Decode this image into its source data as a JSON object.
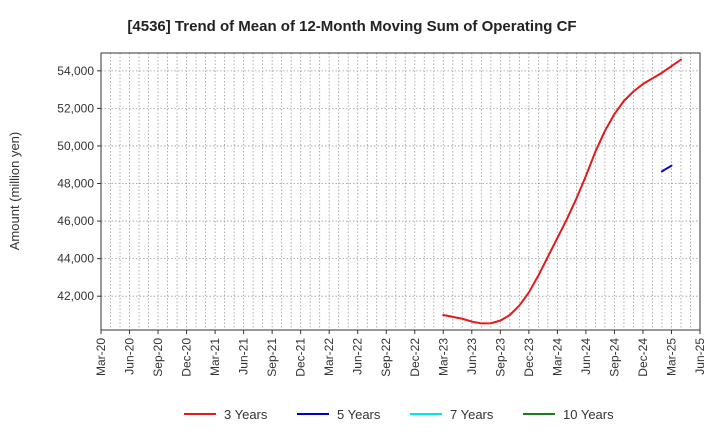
{
  "chart_data": {
    "type": "line",
    "title": "[4536]  Trend of Mean of 12-Month Moving Sum of Operating CF",
    "xlabel": "",
    "ylabel": "Amount (million yen)",
    "ylim": [
      40200,
      54950
    ],
    "yticks": [
      42000,
      44000,
      46000,
      48000,
      50000,
      52000,
      54000
    ],
    "ytick_labels": [
      "42,000",
      "44,000",
      "46,000",
      "48,000",
      "50,000",
      "52,000",
      "54,000"
    ],
    "x_range_months": [
      0,
      63
    ],
    "xtick_labels": [
      "Mar-20",
      "Jun-20",
      "Sep-20",
      "Dec-20",
      "Mar-21",
      "Jun-21",
      "Sep-21",
      "Dec-21",
      "Mar-22",
      "Jun-22",
      "Sep-22",
      "Dec-22",
      "Mar-23",
      "Jun-23",
      "Sep-23",
      "Dec-23",
      "Mar-24",
      "Jun-24",
      "Sep-24",
      "Dec-24",
      "Mar-25",
      "Jun-25"
    ],
    "grid": true,
    "legend_position": "bottom",
    "series": [
      {
        "name": "3 Years",
        "color": "#e31a1c",
        "start_label": "Mar-23",
        "values": [
          41000,
          40900,
          40800,
          40650,
          40550,
          40560,
          40700,
          41000,
          41500,
          42200,
          43100,
          44100,
          45100,
          46100,
          47200,
          48400,
          49700,
          50800,
          51700,
          52400,
          52900,
          53300,
          53600,
          53900,
          54250,
          54600
        ]
      },
      {
        "name": "5 Years",
        "color": "#0000cc",
        "start_label": "Feb-25",
        "values": [
          48650,
          48950
        ]
      },
      {
        "name": "7 Years",
        "color": "#00e5ee",
        "start_label": "",
        "values": []
      },
      {
        "name": "10 Years",
        "color": "#1a7f1a",
        "start_label": "",
        "values": []
      }
    ]
  }
}
